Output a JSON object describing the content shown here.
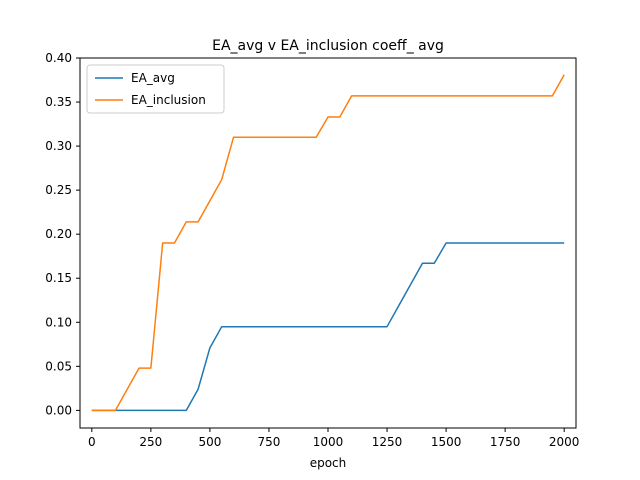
{
  "chart_data": {
    "type": "line",
    "title": "EA_avg v EA_inclusion coeff_ avg",
    "xlabel": "epoch",
    "ylabel": "",
    "xlim": [
      -50,
      2050
    ],
    "ylim": [
      -0.02,
      0.4
    ],
    "xticks": [
      0,
      250,
      500,
      750,
      1000,
      1250,
      1500,
      1750,
      2000
    ],
    "xtick_labels": [
      "0",
      "250",
      "500",
      "750",
      "1000",
      "1250",
      "1500",
      "1750",
      "2000"
    ],
    "yticks": [
      0.0,
      0.05,
      0.1,
      0.15,
      0.2,
      0.25,
      0.3,
      0.35,
      0.4
    ],
    "ytick_labels": [
      "0.00",
      "0.05",
      "0.10",
      "0.15",
      "0.20",
      "0.25",
      "0.30",
      "0.35",
      "0.40"
    ],
    "grid": false,
    "legend_position": "upper-left",
    "series": [
      {
        "name": "EA_avg",
        "color": "#1f77b4",
        "x": [
          0,
          50,
          100,
          150,
          200,
          250,
          300,
          350,
          400,
          450,
          500,
          550,
          600,
          650,
          700,
          750,
          800,
          850,
          900,
          950,
          1000,
          1050,
          1100,
          1150,
          1200,
          1250,
          1300,
          1350,
          1400,
          1450,
          1500,
          1550,
          1600,
          1650,
          1700,
          1750,
          1800,
          1850,
          1900,
          1950,
          2000
        ],
        "y": [
          0,
          0,
          0,
          0,
          0,
          0,
          0,
          0,
          0,
          0.024,
          0.071,
          0.095,
          0.095,
          0.095,
          0.095,
          0.095,
          0.095,
          0.095,
          0.095,
          0.095,
          0.095,
          0.095,
          0.095,
          0.095,
          0.095,
          0.095,
          0.119,
          0.143,
          0.167,
          0.167,
          0.19,
          0.19,
          0.19,
          0.19,
          0.19,
          0.19,
          0.19,
          0.19,
          0.19,
          0.19,
          0.19
        ]
      },
      {
        "name": "EA_inclusion",
        "color": "#ff7f0e",
        "x": [
          0,
          50,
          100,
          150,
          200,
          250,
          300,
          350,
          400,
          450,
          500,
          550,
          600,
          650,
          700,
          750,
          800,
          850,
          900,
          950,
          1000,
          1050,
          1100,
          1150,
          1200,
          1250,
          1300,
          1350,
          1400,
          1450,
          1500,
          1550,
          1600,
          1650,
          1700,
          1750,
          1800,
          1850,
          1900,
          1950,
          2000
        ],
        "y": [
          0,
          0,
          0,
          0.024,
          0.048,
          0.048,
          0.19,
          0.19,
          0.214,
          0.214,
          0.238,
          0.262,
          0.31,
          0.31,
          0.31,
          0.31,
          0.31,
          0.31,
          0.31,
          0.31,
          0.333,
          0.333,
          0.357,
          0.357,
          0.357,
          0.357,
          0.357,
          0.357,
          0.357,
          0.357,
          0.357,
          0.357,
          0.357,
          0.357,
          0.357,
          0.357,
          0.357,
          0.357,
          0.357,
          0.357,
          0.381
        ]
      }
    ]
  }
}
